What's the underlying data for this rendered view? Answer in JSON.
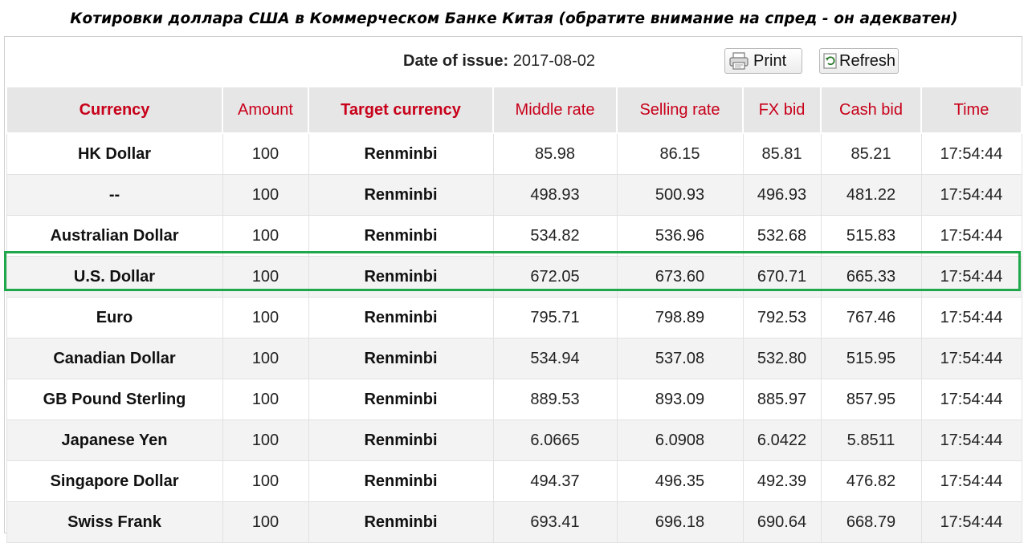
{
  "title": "Котировки доллара США в Коммерческом Банке Китая (обратите внимание на спред - он адекватен)",
  "toolbar": {
    "date_label": "Date of issue:",
    "date_value": "2017-08-02",
    "print_label": "Print",
    "refresh_label": "Refresh"
  },
  "table": {
    "columns": [
      "Currency",
      "Amount",
      "Target currency",
      "Middle rate",
      "Selling rate",
      "FX bid",
      "Cash bid",
      "Time"
    ],
    "rows": [
      [
        "HK Dollar",
        "100",
        "Renminbi",
        "85.98",
        "86.15",
        "85.81",
        "85.21",
        "17:54:44"
      ],
      [
        "--",
        "100",
        "Renminbi",
        "498.93",
        "500.93",
        "496.93",
        "481.22",
        "17:54:44"
      ],
      [
        "Australian Dollar",
        "100",
        "Renminbi",
        "534.82",
        "536.96",
        "532.68",
        "515.83",
        "17:54:44"
      ],
      [
        "U.S. Dollar",
        "100",
        "Renminbi",
        "672.05",
        "673.60",
        "670.71",
        "665.33",
        "17:54:44"
      ],
      [
        "Euro",
        "100",
        "Renminbi",
        "795.71",
        "798.89",
        "792.53",
        "767.46",
        "17:54:44"
      ],
      [
        "Canadian Dollar",
        "100",
        "Renminbi",
        "534.94",
        "537.08",
        "532.80",
        "515.95",
        "17:54:44"
      ],
      [
        "GB Pound Sterling",
        "100",
        "Renminbi",
        "889.53",
        "893.09",
        "885.97",
        "857.95",
        "17:54:44"
      ],
      [
        "Japanese Yen",
        "100",
        "Renminbi",
        "6.0665",
        "6.0908",
        "6.0422",
        "5.8511",
        "17:54:44"
      ],
      [
        "Singapore Dollar",
        "100",
        "Renminbi",
        "494.37",
        "496.35",
        "492.39",
        "476.82",
        "17:54:44"
      ],
      [
        "Swiss Frank",
        "100",
        "Renminbi",
        "693.41",
        "696.18",
        "690.64",
        "668.79",
        "17:54:44"
      ]
    ],
    "highlighted_row": "U.S. Dollar"
  },
  "colors": {
    "header_text": "#c8001a",
    "header_bg": "#e6e6e6",
    "highlight_border": "#1fa84b"
  },
  "icons": {
    "print": "printer-icon",
    "refresh": "refresh-icon"
  }
}
